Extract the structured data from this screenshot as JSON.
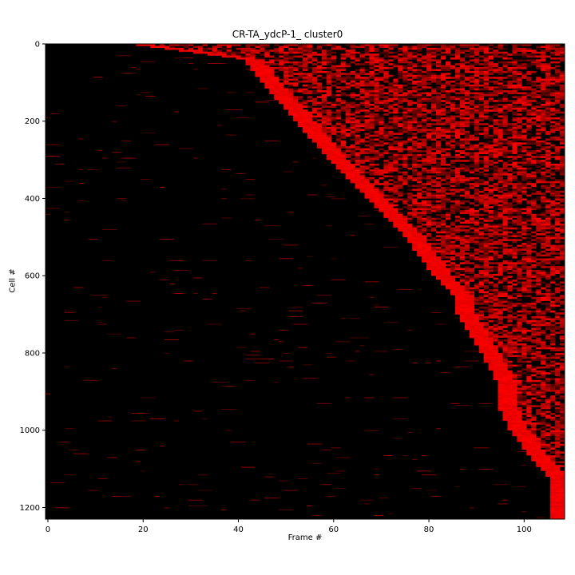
{
  "chart_data": {
    "type": "heatmap",
    "title": "CR-TA_ydcP-1_ cluster0",
    "xlabel": "Frame #",
    "ylabel": "Cell #",
    "xlim": [
      -0.5,
      108.5
    ],
    "ylim": [
      1230,
      0
    ],
    "x_ticks": [
      0,
      20,
      40,
      60,
      80,
      100
    ],
    "y_ticks": [
      0,
      200,
      400,
      600,
      800,
      1000,
      1200
    ],
    "n_frames": 109,
    "n_cells": 1230,
    "colormap": [
      "#000000",
      "#ff0000"
    ],
    "onset_profile": [
      {
        "cell": 0,
        "onset_frame": 18
      },
      {
        "cell": 40,
        "onset_frame": 42
      },
      {
        "cell": 100,
        "onset_frame": 46
      },
      {
        "cell": 200,
        "onset_frame": 53
      },
      {
        "cell": 300,
        "onset_frame": 60
      },
      {
        "cell": 400,
        "onset_frame": 68
      },
      {
        "cell": 500,
        "onset_frame": 76
      },
      {
        "cell": 600,
        "onset_frame": 82
      },
      {
        "cell": 650,
        "onset_frame": 86
      },
      {
        "cell": 700,
        "onset_frame": 87
      },
      {
        "cell": 800,
        "onset_frame": 92
      },
      {
        "cell": 870,
        "onset_frame": 95
      },
      {
        "cell": 950,
        "onset_frame": 96
      },
      {
        "cell": 1000,
        "onset_frame": 98
      },
      {
        "cell": 1080,
        "onset_frame": 103
      },
      {
        "cell": 1120,
        "onset_frame": 106
      },
      {
        "cell": 1230,
        "onset_frame": 107
      }
    ]
  }
}
